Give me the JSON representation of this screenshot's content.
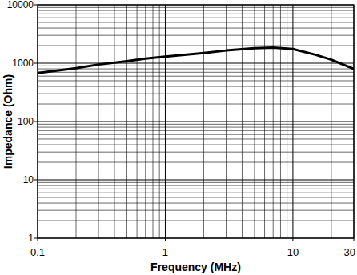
{
  "chart_data": {
    "type": "line",
    "x_label": "Frequency (MHz)",
    "y_label": "Impedance (Ohm)",
    "x": [
      0.1,
      0.2,
      0.3,
      0.5,
      0.7,
      1,
      2,
      3,
      5,
      7,
      10,
      15,
      20,
      30
    ],
    "series": [
      {
        "color": "#000000",
        "values": [
          680,
          820,
          950,
          1080,
          1200,
          1300,
          1500,
          1650,
          1800,
          1850,
          1750,
          1400,
          1150,
          800
        ]
      }
    ],
    "xlim": [
      0.1,
      30
    ],
    "ylim": [
      1,
      10000
    ],
    "xticks": [
      0.1,
      1,
      10,
      30
    ],
    "yticks": [
      1,
      10,
      100,
      1000,
      10000
    ],
    "log": true,
    "grid": true
  }
}
